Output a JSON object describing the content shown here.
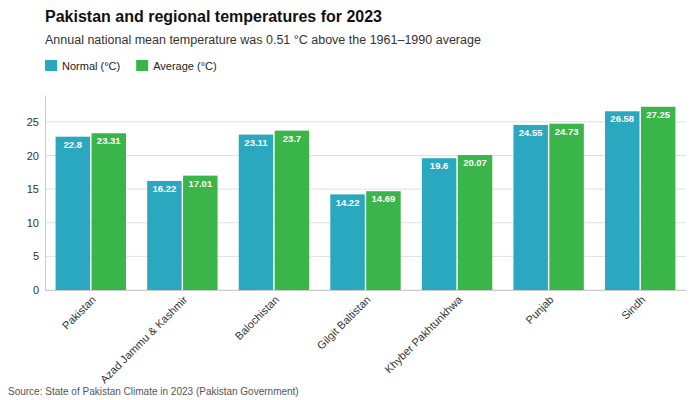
{
  "chart_data": {
    "type": "bar",
    "title": "Pakistan and regional temperatures for 2023",
    "subtitle": "Annual national mean temperature was 0.51 °C above the 1961–1990 average",
    "source": "Source: State of Pakistan Climate in 2023 (Pakistan Government)",
    "categories": [
      "Pakistan",
      "Azad Jammu & Kashmir",
      "Balochistan",
      "Gilgit Baltistan",
      "Khyber Pakhtunkhwa",
      "Punjab",
      "Sindh"
    ],
    "series": [
      {
        "name": "Normal (°C)",
        "color": "#29A8C0",
        "values": [
          22.8,
          16.22,
          23.11,
          14.22,
          19.6,
          24.55,
          26.58
        ]
      },
      {
        "name": "Average (°C)",
        "color": "#3AB54A",
        "values": [
          23.31,
          17.01,
          23.7,
          14.69,
          20.07,
          24.73,
          27.25
        ]
      }
    ],
    "ylim": [
      0,
      29
    ],
    "yticks": [
      0,
      5,
      10,
      15,
      20,
      25
    ],
    "grid": true,
    "legend": "upper left",
    "data_labels": true
  }
}
